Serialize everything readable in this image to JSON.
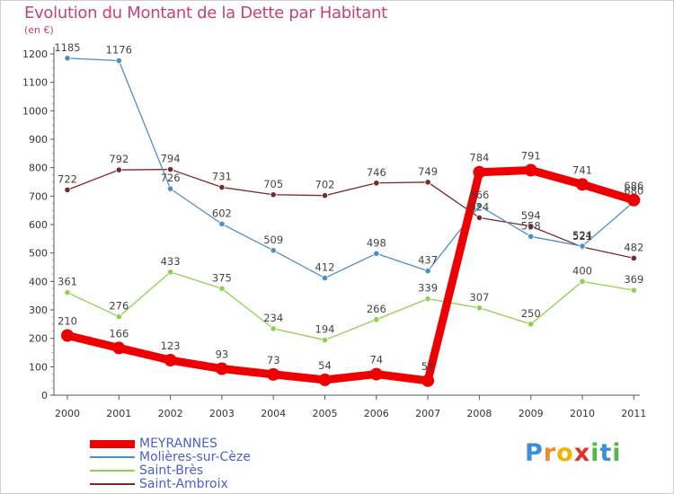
{
  "header": {
    "title": "Evolution du Montant de la Dette par Habitant",
    "subtitle": "(en €)"
  },
  "logo": {
    "text": "Proxiti",
    "letters": [
      "P",
      "r",
      "o",
      "x",
      "i",
      "t",
      "i"
    ],
    "colors": [
      "#3b8fd9",
      "#f08a24",
      "#f0b400",
      "#e0342b",
      "#56b847",
      "#3b8fd9",
      "#56b847"
    ]
  },
  "colors": {
    "title": "#c44275",
    "legend_text": "#4a5fd0",
    "axis": "#666666",
    "grid": "#dddddd"
  },
  "chart_data": {
    "type": "line",
    "title": "Evolution du Montant de la Dette par Habitant",
    "subtitle": "(en €)",
    "x": [
      "2000",
      "2001",
      "2002",
      "2003",
      "2004",
      "2005",
      "2006",
      "2007",
      "2008",
      "2009",
      "2010",
      "2011"
    ],
    "ylim": [
      0,
      1200
    ],
    "yticks": [
      0,
      100,
      200,
      300,
      400,
      500,
      600,
      700,
      800,
      900,
      1000,
      1100,
      1200
    ],
    "grid": false,
    "legend_position": "bottom-left",
    "series": [
      {
        "name": "MEYRANNES",
        "color": "#ee0000",
        "values": [
          210,
          166,
          123,
          93,
          73,
          54,
          74,
          51,
          784,
          791,
          741,
          686
        ]
      },
      {
        "name": "Molières-sur-Cèze",
        "color": "#4a90c8",
        "values": [
          1185,
          1176,
          726,
          602,
          509,
          412,
          498,
          437,
          666,
          558,
          524,
          680
        ]
      },
      {
        "name": "Saint-Brès",
        "color": "#8fd14f",
        "values": [
          361,
          276,
          433,
          375,
          234,
          194,
          266,
          339,
          307,
          250,
          400,
          369
        ]
      },
      {
        "name": "Saint-Ambroix",
        "color": "#7b2828",
        "values": [
          722,
          792,
          794,
          731,
          705,
          702,
          746,
          749,
          624,
          594,
          521,
          482
        ]
      }
    ]
  }
}
